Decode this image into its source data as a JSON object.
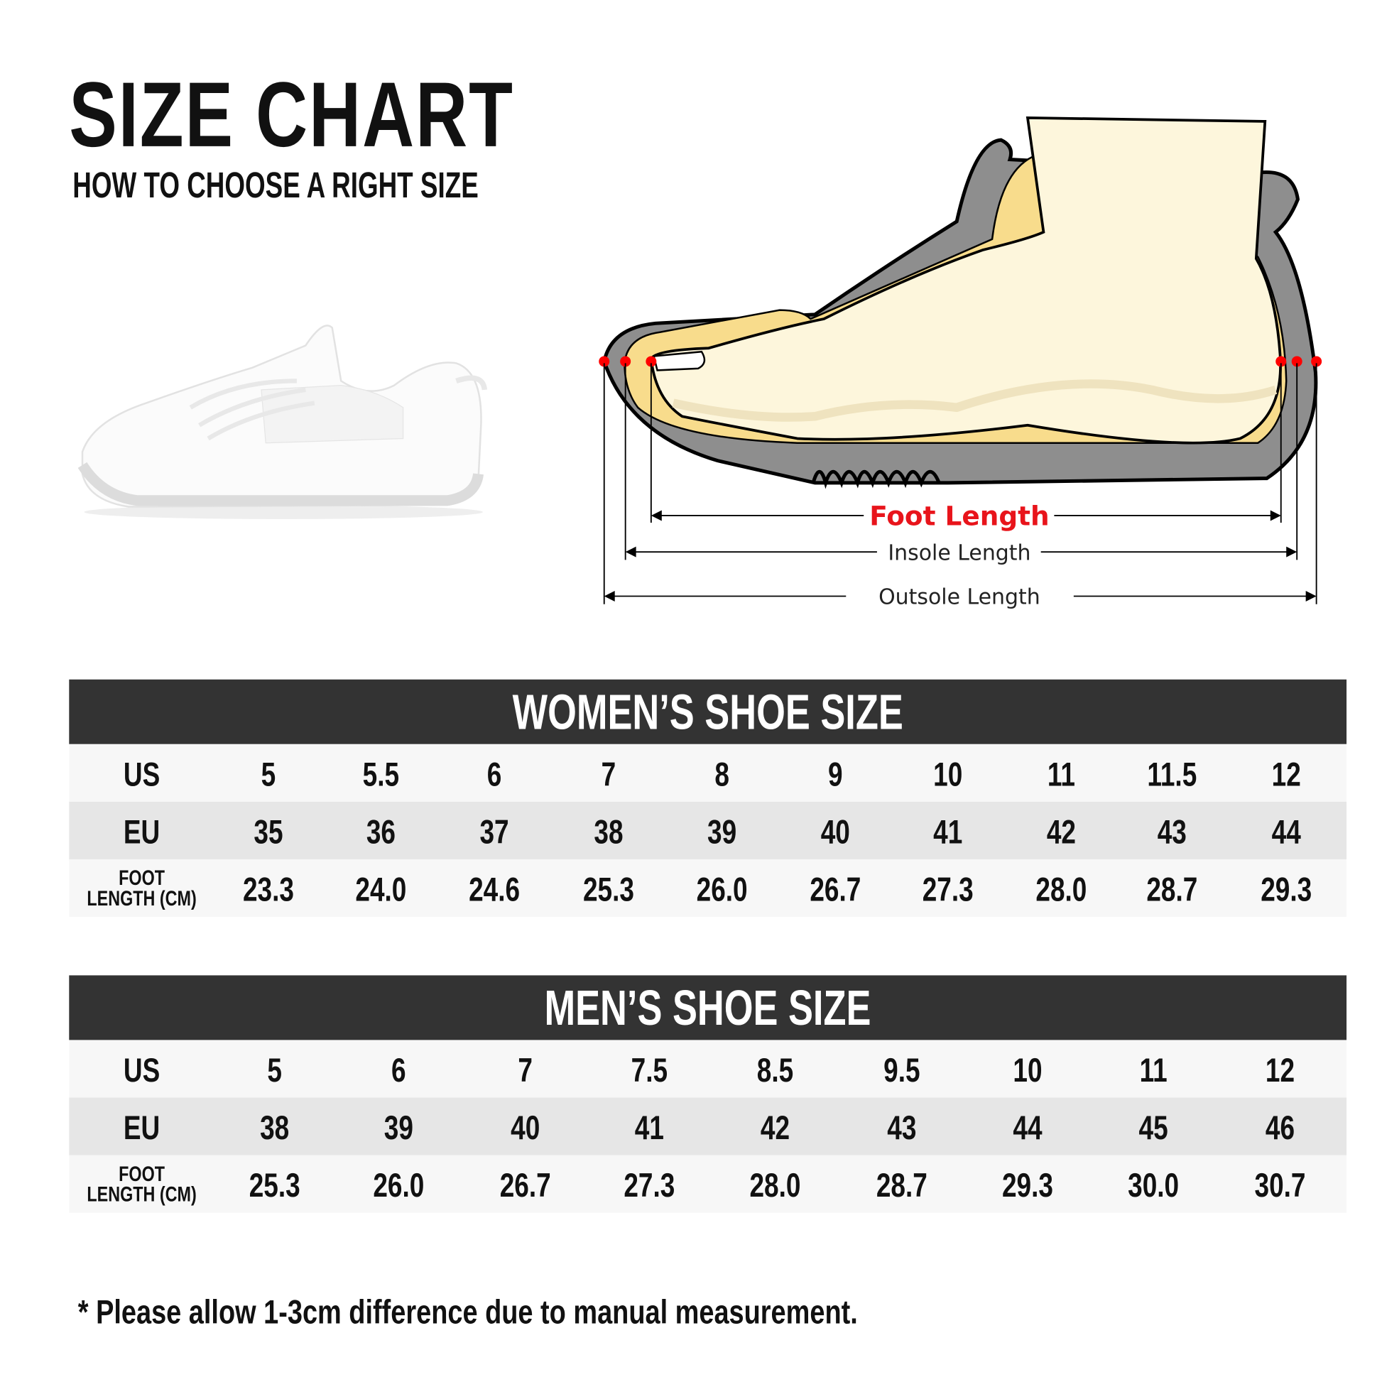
{
  "header": {
    "title": "SIZE CHART",
    "subtitle": "HOW TO CHOOSE A RIGHT SIZE"
  },
  "diagram": {
    "foot_length": "Foot Length",
    "insole_length": "Insole Length",
    "outsole_length": "Outsole Length",
    "colors": {
      "foot_length": "#e8141b",
      "sole": "#8e8e8e",
      "insole": "#f8dc8c",
      "foot": "#fdf6dc",
      "marker": "#ff0000"
    }
  },
  "women": {
    "title": "WOMEN’S SHOE SIZE",
    "labels": {
      "us": "US",
      "eu": "EU",
      "foot1": "FOOT",
      "foot2": "LENGTH (CM)"
    },
    "us": [
      "5",
      "5.5",
      "6",
      "7",
      "8",
      "9",
      "10",
      "11",
      "11.5",
      "12"
    ],
    "eu": [
      "35",
      "36",
      "37",
      "38",
      "39",
      "40",
      "41",
      "42",
      "43",
      "44"
    ],
    "foot": [
      "23.3",
      "24.0",
      "24.6",
      "25.3",
      "26.0",
      "26.7",
      "27.3",
      "28.0",
      "28.7",
      "29.3"
    ]
  },
  "men": {
    "title": "MEN’S SHOE SIZE",
    "labels": {
      "us": "US",
      "eu": "EU",
      "foot1": "FOOT",
      "foot2": "LENGTH (CM)"
    },
    "us": [
      "5",
      "6",
      "7",
      "7.5",
      "8.5",
      "9.5",
      "10",
      "11",
      "12"
    ],
    "eu": [
      "38",
      "39",
      "40",
      "41",
      "42",
      "43",
      "44",
      "45",
      "46"
    ],
    "foot": [
      "25.3",
      "26.0",
      "26.7",
      "27.3",
      "28.0",
      "28.7",
      "29.3",
      "30.0",
      "30.7"
    ]
  },
  "footnote": "* Please allow 1-3cm difference due to manual measurement."
}
